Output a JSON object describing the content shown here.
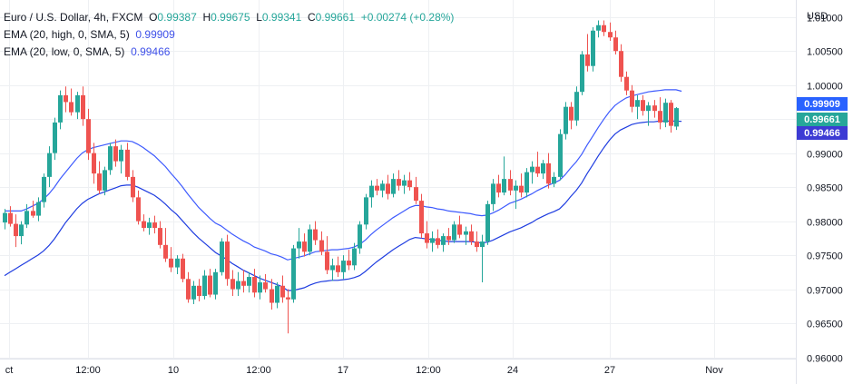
{
  "header": {
    "symbol": "Euro / U.S. Dollar, 4h, FXCM",
    "ohlc": [
      {
        "k": "O",
        "v": "0.99387"
      },
      {
        "k": "H",
        "v": "0.99675"
      },
      {
        "k": "L",
        "v": "0.99341"
      },
      {
        "k": "C",
        "v": "0.99661"
      }
    ],
    "change": "+0.00274 (+0.28%)",
    "ema_high_label": "EMA (20, high, 0, SMA, 5)",
    "ema_high_value": "0.99909",
    "ema_low_label": "EMA (20, low, 0, SMA, 5)",
    "ema_low_value": "0.99466"
  },
  "axis": {
    "currency": "USD",
    "price_ticks": [
      "1.01000",
      "1.00500",
      "1.00000",
      "0.99500",
      "0.99000",
      "0.98500",
      "0.98000",
      "0.97500",
      "0.97000",
      "0.96500",
      "0.96000"
    ],
    "time_ticks": [
      "ct",
      "12:00",
      "10",
      "12:00",
      "17",
      "12:00",
      "24",
      "27",
      "Nov"
    ]
  },
  "price_tags": [
    {
      "label": "0.99909",
      "value": 0.99909,
      "color": "#2962ff"
    },
    {
      "label": "0.99661",
      "value": 0.99661,
      "color": "#26a69a"
    },
    {
      "label": "0.99466",
      "value": 0.99466,
      "color": "#3d3bd4"
    }
  ],
  "colors": {
    "up": "#26a69a",
    "down": "#ef5350",
    "ema_high": "#3d5afe",
    "ema_low": "#1f3de0",
    "grid": "#eef0f3"
  },
  "chart_data": {
    "type": "candlestick",
    "title": "Euro / U.S. Dollar, 4h, FXCM",
    "ylim": [
      0.9598,
      1.0125
    ],
    "y_ticks": [
      1.01,
      1.005,
      1.0,
      0.995,
      0.99,
      0.985,
      0.98,
      0.975,
      0.97,
      0.965,
      0.96
    ],
    "grid": true,
    "candles": [
      {
        "o": 0.9798,
        "h": 0.9818,
        "l": 0.9788,
        "c": 0.9812
      },
      {
        "o": 0.9812,
        "h": 0.9822,
        "l": 0.9792,
        "c": 0.9796
      },
      {
        "o": 0.9796,
        "h": 0.981,
        "l": 0.9762,
        "c": 0.9778
      },
      {
        "o": 0.9778,
        "h": 0.98,
        "l": 0.9766,
        "c": 0.9795
      },
      {
        "o": 0.9795,
        "h": 0.9825,
        "l": 0.979,
        "c": 0.9815
      },
      {
        "o": 0.9815,
        "h": 0.983,
        "l": 0.9805,
        "c": 0.9808
      },
      {
        "o": 0.9808,
        "h": 0.9835,
        "l": 0.98,
        "c": 0.9828
      },
      {
        "o": 0.9828,
        "h": 0.987,
        "l": 0.982,
        "c": 0.9865
      },
      {
        "o": 0.9865,
        "h": 0.991,
        "l": 0.985,
        "c": 0.99
      },
      {
        "o": 0.99,
        "h": 0.9952,
        "l": 0.989,
        "c": 0.9945
      },
      {
        "o": 0.9945,
        "h": 0.9992,
        "l": 0.9935,
        "c": 0.9985
      },
      {
        "o": 0.9985,
        "h": 0.9998,
        "l": 0.996,
        "c": 0.9975
      },
      {
        "o": 0.9975,
        "h": 0.9995,
        "l": 0.9955,
        "c": 0.996
      },
      {
        "o": 0.996,
        "h": 0.999,
        "l": 0.995,
        "c": 0.9985
      },
      {
        "o": 0.9985,
        "h": 0.9998,
        "l": 0.994,
        "c": 0.995
      },
      {
        "o": 0.995,
        "h": 0.9965,
        "l": 0.989,
        "c": 0.99
      },
      {
        "o": 0.99,
        "h": 0.9915,
        "l": 0.9855,
        "c": 0.987
      },
      {
        "o": 0.987,
        "h": 0.9888,
        "l": 0.984,
        "c": 0.9845
      },
      {
        "o": 0.9845,
        "h": 0.988,
        "l": 0.9838,
        "c": 0.9875
      },
      {
        "o": 0.9875,
        "h": 0.9915,
        "l": 0.9868,
        "c": 0.991
      },
      {
        "o": 0.991,
        "h": 0.992,
        "l": 0.988,
        "c": 0.9888
      },
      {
        "o": 0.9888,
        "h": 0.9912,
        "l": 0.987,
        "c": 0.9905
      },
      {
        "o": 0.9905,
        "h": 0.9915,
        "l": 0.986,
        "c": 0.9865
      },
      {
        "o": 0.9865,
        "h": 0.9875,
        "l": 0.9828,
        "c": 0.9835
      },
      {
        "o": 0.9835,
        "h": 0.9845,
        "l": 0.9795,
        "c": 0.98
      },
      {
        "o": 0.98,
        "h": 0.981,
        "l": 0.9785,
        "c": 0.979
      },
      {
        "o": 0.979,
        "h": 0.9805,
        "l": 0.978,
        "c": 0.9798
      },
      {
        "o": 0.9798,
        "h": 0.9808,
        "l": 0.9782,
        "c": 0.979
      },
      {
        "o": 0.979,
        "h": 0.98,
        "l": 0.976,
        "c": 0.9765
      },
      {
        "o": 0.9765,
        "h": 0.979,
        "l": 0.974,
        "c": 0.9745
      },
      {
        "o": 0.9745,
        "h": 0.9762,
        "l": 0.9725,
        "c": 0.9732
      },
      {
        "o": 0.9732,
        "h": 0.975,
        "l": 0.9722,
        "c": 0.9745
      },
      {
        "o": 0.9745,
        "h": 0.9752,
        "l": 0.971,
        "c": 0.9715
      },
      {
        "o": 0.9715,
        "h": 0.9725,
        "l": 0.968,
        "c": 0.9685
      },
      {
        "o": 0.9685,
        "h": 0.9712,
        "l": 0.9678,
        "c": 0.9705
      },
      {
        "o": 0.9705,
        "h": 0.9715,
        "l": 0.9682,
        "c": 0.969
      },
      {
        "o": 0.969,
        "h": 0.9728,
        "l": 0.9685,
        "c": 0.972
      },
      {
        "o": 0.972,
        "h": 0.973,
        "l": 0.9688,
        "c": 0.9692
      },
      {
        "o": 0.9692,
        "h": 0.973,
        "l": 0.9685,
        "c": 0.9725
      },
      {
        "o": 0.9725,
        "h": 0.9775,
        "l": 0.972,
        "c": 0.977
      },
      {
        "o": 0.977,
        "h": 0.978,
        "l": 0.9705,
        "c": 0.9715
      },
      {
        "o": 0.9715,
        "h": 0.9728,
        "l": 0.969,
        "c": 0.97
      },
      {
        "o": 0.97,
        "h": 0.9725,
        "l": 0.969,
        "c": 0.9712
      },
      {
        "o": 0.9712,
        "h": 0.9728,
        "l": 0.9695,
        "c": 0.9705
      },
      {
        "o": 0.9705,
        "h": 0.9725,
        "l": 0.9695,
        "c": 0.9718
      },
      {
        "o": 0.9718,
        "h": 0.973,
        "l": 0.9688,
        "c": 0.9695
      },
      {
        "o": 0.9695,
        "h": 0.972,
        "l": 0.9685,
        "c": 0.971
      },
      {
        "o": 0.971,
        "h": 0.9722,
        "l": 0.9695,
        "c": 0.97
      },
      {
        "o": 0.97,
        "h": 0.9715,
        "l": 0.967,
        "c": 0.968
      },
      {
        "o": 0.968,
        "h": 0.971,
        "l": 0.9672,
        "c": 0.9705
      },
      {
        "o": 0.9705,
        "h": 0.972,
        "l": 0.968,
        "c": 0.9688
      },
      {
        "o": 0.9688,
        "h": 0.97,
        "l": 0.9635,
        "c": 0.9685
      },
      {
        "o": 0.9685,
        "h": 0.9765,
        "l": 0.968,
        "c": 0.976
      },
      {
        "o": 0.976,
        "h": 0.979,
        "l": 0.9745,
        "c": 0.977
      },
      {
        "o": 0.977,
        "h": 0.9782,
        "l": 0.9748,
        "c": 0.9755
      },
      {
        "o": 0.9755,
        "h": 0.9795,
        "l": 0.975,
        "c": 0.9788
      },
      {
        "o": 0.9788,
        "h": 0.98,
        "l": 0.9765,
        "c": 0.9772
      },
      {
        "o": 0.9772,
        "h": 0.9785,
        "l": 0.975,
        "c": 0.9755
      },
      {
        "o": 0.9755,
        "h": 0.9778,
        "l": 0.9722,
        "c": 0.9728
      },
      {
        "o": 0.9728,
        "h": 0.9745,
        "l": 0.9712,
        "c": 0.9735
      },
      {
        "o": 0.9735,
        "h": 0.9748,
        "l": 0.9718,
        "c": 0.9725
      },
      {
        "o": 0.9725,
        "h": 0.975,
        "l": 0.9715,
        "c": 0.9742
      },
      {
        "o": 0.9742,
        "h": 0.9758,
        "l": 0.9728,
        "c": 0.9735
      },
      {
        "o": 0.9735,
        "h": 0.9768,
        "l": 0.9728,
        "c": 0.976
      },
      {
        "o": 0.976,
        "h": 0.98,
        "l": 0.9752,
        "c": 0.9795
      },
      {
        "o": 0.9795,
        "h": 0.984,
        "l": 0.9788,
        "c": 0.9835
      },
      {
        "o": 0.9835,
        "h": 0.986,
        "l": 0.982,
        "c": 0.9852
      },
      {
        "o": 0.9852,
        "h": 0.9862,
        "l": 0.9838,
        "c": 0.9845
      },
      {
        "o": 0.9845,
        "h": 0.986,
        "l": 0.9835,
        "c": 0.9855
      },
      {
        "o": 0.9855,
        "h": 0.9868,
        "l": 0.9832,
        "c": 0.984
      },
      {
        "o": 0.984,
        "h": 0.987,
        "l": 0.9835,
        "c": 0.9862
      },
      {
        "o": 0.9862,
        "h": 0.9875,
        "l": 0.9845,
        "c": 0.9852
      },
      {
        "o": 0.9852,
        "h": 0.9868,
        "l": 0.984,
        "c": 0.986
      },
      {
        "o": 0.986,
        "h": 0.9872,
        "l": 0.9845,
        "c": 0.985
      },
      {
        "o": 0.985,
        "h": 0.9865,
        "l": 0.9825,
        "c": 0.983
      },
      {
        "o": 0.983,
        "h": 0.984,
        "l": 0.9775,
        "c": 0.9782
      },
      {
        "o": 0.9782,
        "h": 0.98,
        "l": 0.976,
        "c": 0.9768
      },
      {
        "o": 0.9768,
        "h": 0.9785,
        "l": 0.9755,
        "c": 0.9775
      },
      {
        "o": 0.9775,
        "h": 0.9788,
        "l": 0.976,
        "c": 0.9765
      },
      {
        "o": 0.9765,
        "h": 0.9782,
        "l": 0.9755,
        "c": 0.9778
      },
      {
        "o": 0.9778,
        "h": 0.979,
        "l": 0.9765,
        "c": 0.9772
      },
      {
        "o": 0.9772,
        "h": 0.98,
        "l": 0.9768,
        "c": 0.9795
      },
      {
        "o": 0.9795,
        "h": 0.9808,
        "l": 0.9775,
        "c": 0.978
      },
      {
        "o": 0.978,
        "h": 0.9792,
        "l": 0.9765,
        "c": 0.9785
      },
      {
        "o": 0.9785,
        "h": 0.9795,
        "l": 0.9765,
        "c": 0.977
      },
      {
        "o": 0.977,
        "h": 0.9785,
        "l": 0.9755,
        "c": 0.9762
      },
      {
        "o": 0.9762,
        "h": 0.978,
        "l": 0.971,
        "c": 0.977
      },
      {
        "o": 0.977,
        "h": 0.983,
        "l": 0.9765,
        "c": 0.9825
      },
      {
        "o": 0.9825,
        "h": 0.9862,
        "l": 0.9815,
        "c": 0.9855
      },
      {
        "o": 0.9855,
        "h": 0.9868,
        "l": 0.9835,
        "c": 0.9842
      },
      {
        "o": 0.9842,
        "h": 0.9895,
        "l": 0.9838,
        "c": 0.9862
      },
      {
        "o": 0.9862,
        "h": 0.9875,
        "l": 0.9838,
        "c": 0.9845
      },
      {
        "o": 0.9845,
        "h": 0.986,
        "l": 0.9818,
        "c": 0.9852
      },
      {
        "o": 0.9852,
        "h": 0.987,
        "l": 0.9835,
        "c": 0.9842
      },
      {
        "o": 0.9842,
        "h": 0.9878,
        "l": 0.9835,
        "c": 0.9872
      },
      {
        "o": 0.9872,
        "h": 0.9888,
        "l": 0.9855,
        "c": 0.988
      },
      {
        "o": 0.988,
        "h": 0.9902,
        "l": 0.9865,
        "c": 0.987
      },
      {
        "o": 0.987,
        "h": 0.989,
        "l": 0.9862,
        "c": 0.9885
      },
      {
        "o": 0.9885,
        "h": 0.99,
        "l": 0.9848,
        "c": 0.9855
      },
      {
        "o": 0.9855,
        "h": 0.9872,
        "l": 0.985,
        "c": 0.9865
      },
      {
        "o": 0.9865,
        "h": 0.9935,
        "l": 0.986,
        "c": 0.9928
      },
      {
        "o": 0.9928,
        "h": 0.9975,
        "l": 0.992,
        "c": 0.9968
      },
      {
        "o": 0.9968,
        "h": 0.9975,
        "l": 0.9935,
        "c": 0.9948
      },
      {
        "o": 0.9948,
        "h": 0.9998,
        "l": 0.994,
        "c": 0.999
      },
      {
        "o": 0.999,
        "h": 1.005,
        "l": 0.9985,
        "c": 1.0045
      },
      {
        "o": 1.0045,
        "h": 1.0075,
        "l": 1.002,
        "c": 1.0028
      },
      {
        "o": 1.0028,
        "h": 1.0085,
        "l": 1.002,
        "c": 1.008
      },
      {
        "o": 1.008,
        "h": 1.0095,
        "l": 1.007,
        "c": 1.0088
      },
      {
        "o": 1.0088,
        "h": 1.0095,
        "l": 1.0072,
        "c": 1.0078
      },
      {
        "o": 1.0078,
        "h": 1.0092,
        "l": 1.0065,
        "c": 1.007
      },
      {
        "o": 1.007,
        "h": 1.008,
        "l": 1.0045,
        "c": 1.005
      },
      {
        "o": 1.005,
        "h": 1.006,
        "l": 1.0005,
        "c": 1.0012
      },
      {
        "o": 1.0012,
        "h": 1.002,
        "l": 0.9985,
        "c": 0.9992
      },
      {
        "o": 0.9992,
        "h": 1.0,
        "l": 0.996,
        "c": 0.9968
      },
      {
        "o": 0.9968,
        "h": 0.9985,
        "l": 0.995,
        "c": 0.9978
      },
      {
        "o": 0.9978,
        "h": 0.9985,
        "l": 0.9955,
        "c": 0.9962
      },
      {
        "o": 0.9962,
        "h": 0.9975,
        "l": 0.994,
        "c": 0.997
      },
      {
        "o": 0.997,
        "h": 0.9978,
        "l": 0.9952,
        "c": 0.9962
      },
      {
        "o": 0.9962,
        "h": 0.9982,
        "l": 0.9935,
        "c": 0.9945
      },
      {
        "o": 0.9945,
        "h": 0.998,
        "l": 0.9938,
        "c": 0.9974
      },
      {
        "o": 0.9974,
        "h": 0.9978,
        "l": 0.993,
        "c": 0.994
      },
      {
        "o": 0.9939,
        "h": 0.99675,
        "l": 0.99341,
        "c": 0.99661
      }
    ],
    "ema_high": [
      0.9815,
      0.9815,
      0.9815,
      0.9815,
      0.9818,
      0.9822,
      0.9826,
      0.9832,
      0.984,
      0.985,
      0.9862,
      0.9872,
      0.9882,
      0.9892,
      0.99,
      0.9905,
      0.9908,
      0.991,
      0.9912,
      0.9914,
      0.9916,
      0.9918,
      0.9918,
      0.9917,
      0.9913,
      0.9908,
      0.9902,
      0.9896,
      0.9888,
      0.988,
      0.987,
      0.9861,
      0.9851,
      0.984,
      0.983,
      0.982,
      0.9812,
      0.9804,
      0.9797,
      0.9793,
      0.9787,
      0.9781,
      0.9776,
      0.9771,
      0.9767,
      0.9762,
      0.9759,
      0.9756,
      0.9752,
      0.975,
      0.9747,
      0.9743,
      0.9745,
      0.9747,
      0.9749,
      0.9752,
      0.9755,
      0.9756,
      0.9757,
      0.9758,
      0.9758,
      0.9759,
      0.976,
      0.9762,
      0.9766,
      0.9772,
      0.978,
      0.9787,
      0.9793,
      0.9799,
      0.9805,
      0.981,
      0.9815,
      0.982,
      0.9823,
      0.9823,
      0.9821,
      0.982,
      0.9818,
      0.9817,
      0.9815,
      0.9814,
      0.9813,
      0.9812,
      0.9811,
      0.9809,
      0.9808,
      0.9809,
      0.9812,
      0.9816,
      0.9821,
      0.9826,
      0.9829,
      0.9832,
      0.9836,
      0.984,
      0.9845,
      0.9849,
      0.9853,
      0.9856,
      0.986,
      0.9868,
      0.9878,
      0.9887,
      0.9898,
      0.9912,
      0.9925,
      0.9938,
      0.995,
      0.9961,
      0.997,
      0.9976,
      0.9981,
      0.9984,
      0.9986,
      0.9988,
      0.999,
      0.9991,
      0.9992,
      0.9993,
      0.9993,
      0.9993,
      0.99909
    ],
    "ema_low": [
      0.972,
      0.9725,
      0.973,
      0.9735,
      0.974,
      0.9745,
      0.975,
      0.9756,
      0.9764,
      0.9774,
      0.9786,
      0.9798,
      0.9808,
      0.9818,
      0.9826,
      0.9832,
      0.9836,
      0.984,
      0.9843,
      0.9846,
      0.9849,
      0.9852,
      0.9853,
      0.9853,
      0.985,
      0.9846,
      0.9842,
      0.9838,
      0.9832,
      0.9825,
      0.9817,
      0.981,
      0.9801,
      0.9792,
      0.9783,
      0.9775,
      0.9768,
      0.9761,
      0.9754,
      0.9749,
      0.9744,
      0.9738,
      0.9733,
      0.9728,
      0.9724,
      0.972,
      0.9716,
      0.9713,
      0.971,
      0.9707,
      0.9704,
      0.9698,
      0.9698,
      0.97,
      0.9702,
      0.9706,
      0.9709,
      0.9711,
      0.9712,
      0.9713,
      0.9713,
      0.9714,
      0.9715,
      0.9717,
      0.972,
      0.9726,
      0.9733,
      0.974,
      0.9746,
      0.9752,
      0.9758,
      0.9763,
      0.9768,
      0.9773,
      0.9776,
      0.9775,
      0.9774,
      0.9773,
      0.9772,
      0.9771,
      0.977,
      0.977,
      0.977,
      0.977,
      0.977,
      0.9769,
      0.9768,
      0.9769,
      0.9772,
      0.9776,
      0.978,
      0.9784,
      0.9787,
      0.979,
      0.9794,
      0.9798,
      0.9803,
      0.9807,
      0.9811,
      0.9814,
      0.9818,
      0.9826,
      0.9836,
      0.9845,
      0.9856,
      0.987,
      0.9883,
      0.9896,
      0.9908,
      0.9919,
      0.9928,
      0.9934,
      0.9938,
      0.9942,
      0.9944,
      0.9945,
      0.9946,
      0.9946,
      0.9947,
      0.9947,
      0.9947,
      0.9947,
      0.99466
    ]
  }
}
